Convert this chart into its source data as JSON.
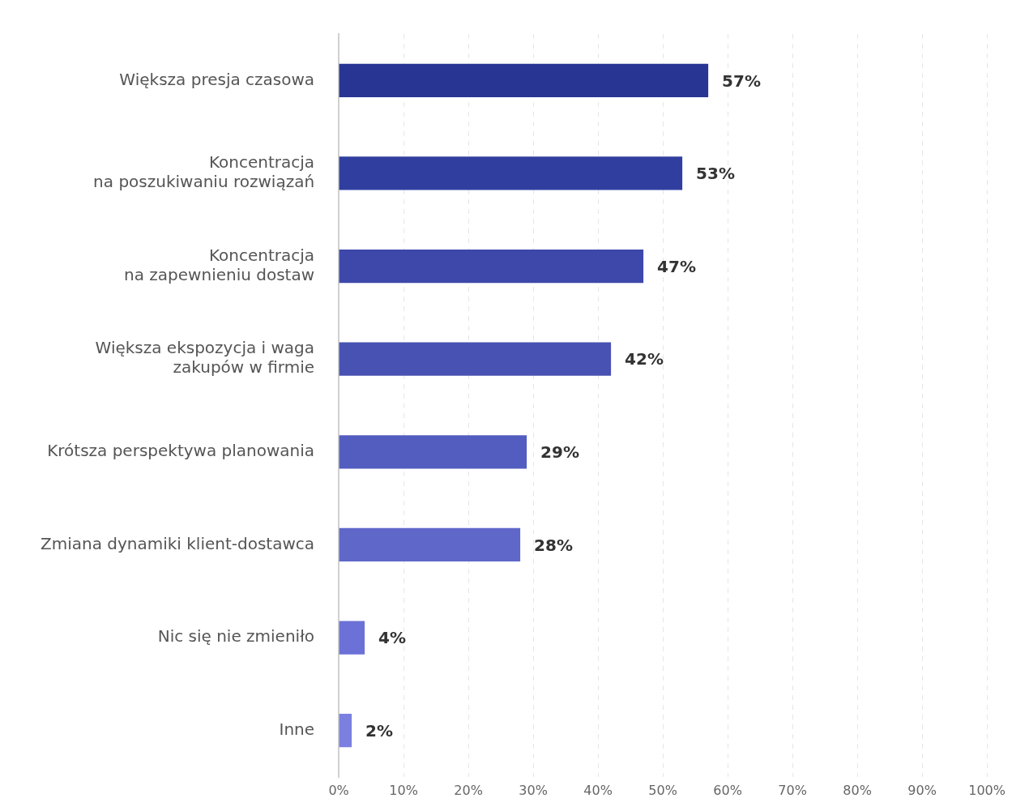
{
  "chart_data": {
    "type": "bar",
    "orientation": "horizontal",
    "categories": [
      "Większa presja czasowa",
      "Koncentracja\nna poszukiwaniu rozwiązań",
      "Koncentracja\nna zapewnieniu dostaw",
      "Większa ekspozycja i waga\nzakupów w firmie",
      "Krótsza perspektywa planowania",
      "Zmiana dynamiki klient-dostawca",
      "Nic się nie zmieniło",
      "Inne"
    ],
    "values": [
      57,
      53,
      47,
      42,
      29,
      28,
      4,
      2
    ],
    "colors": [
      "#283593",
      "#303f9f",
      "#3d48aa",
      "#4852b3",
      "#535dbf",
      "#5f67c9",
      "#6b71d6",
      "#7b80e0"
    ],
    "value_labels": [
      "57%",
      "53%",
      "47%",
      "42%",
      "29%",
      "28%",
      "4%",
      "2%"
    ],
    "xlim": [
      0,
      100
    ],
    "xticks": [
      {
        "value": 0,
        "label": "0%"
      },
      {
        "value": 10,
        "label": "10%"
      },
      {
        "value": 20,
        "label": "20%"
      },
      {
        "value": 30,
        "label": "30%"
      },
      {
        "value": 40,
        "label": "40%"
      },
      {
        "value": 50,
        "label": "50%"
      },
      {
        "value": 60,
        "label": "60%"
      },
      {
        "value": 70,
        "label": "70%"
      },
      {
        "value": 80,
        "label": "80%"
      },
      {
        "value": 90,
        "label": "90%"
      },
      {
        "value": 100,
        "label": "100%"
      }
    ],
    "grid": "x",
    "legend": false
  }
}
